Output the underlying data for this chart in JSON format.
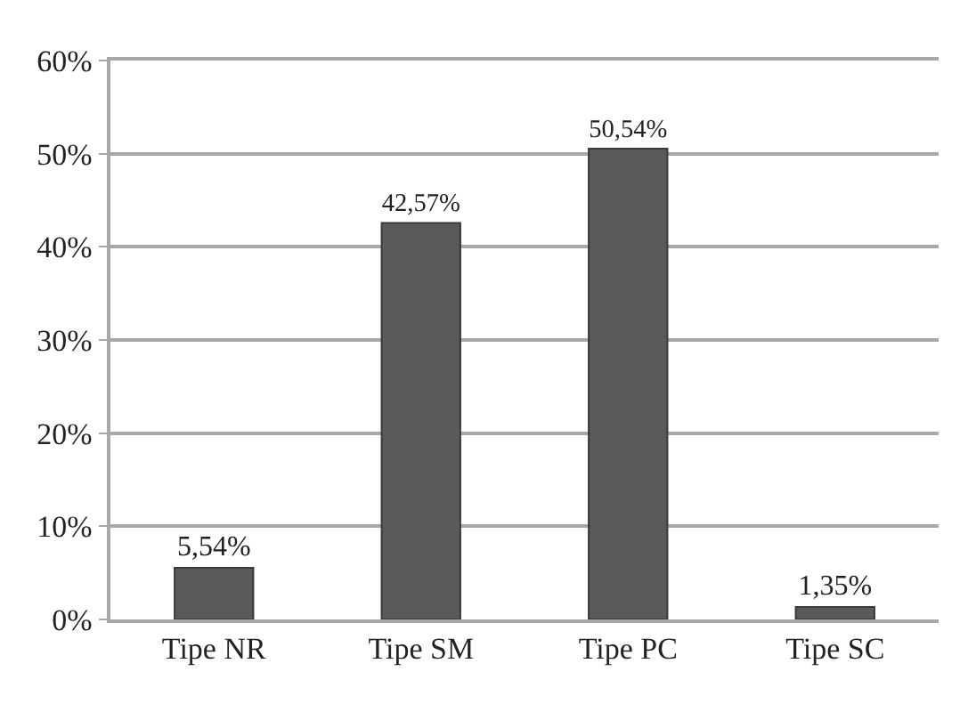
{
  "chart_data": {
    "type": "bar",
    "categories": [
      "Tipe NR",
      "Tipe SM",
      "Tipe PC",
      "Tipe SC"
    ],
    "values": [
      5.54,
      42.57,
      50.54,
      1.35
    ],
    "value_labels": [
      "5,54%",
      "42,57%",
      "50,54%",
      "1,35%"
    ],
    "color": "#5a5a5a",
    "ylim": [
      0,
      60
    ],
    "yticks": [
      {
        "value": 0,
        "label": "0%"
      },
      {
        "value": 10,
        "label": "10%"
      },
      {
        "value": 20,
        "label": "20%"
      },
      {
        "value": 30,
        "label": "30%"
      },
      {
        "value": 40,
        "label": "40%"
      },
      {
        "value": 50,
        "label": "50%"
      },
      {
        "value": 60,
        "label": "60%"
      }
    ],
    "grid": "y"
  }
}
